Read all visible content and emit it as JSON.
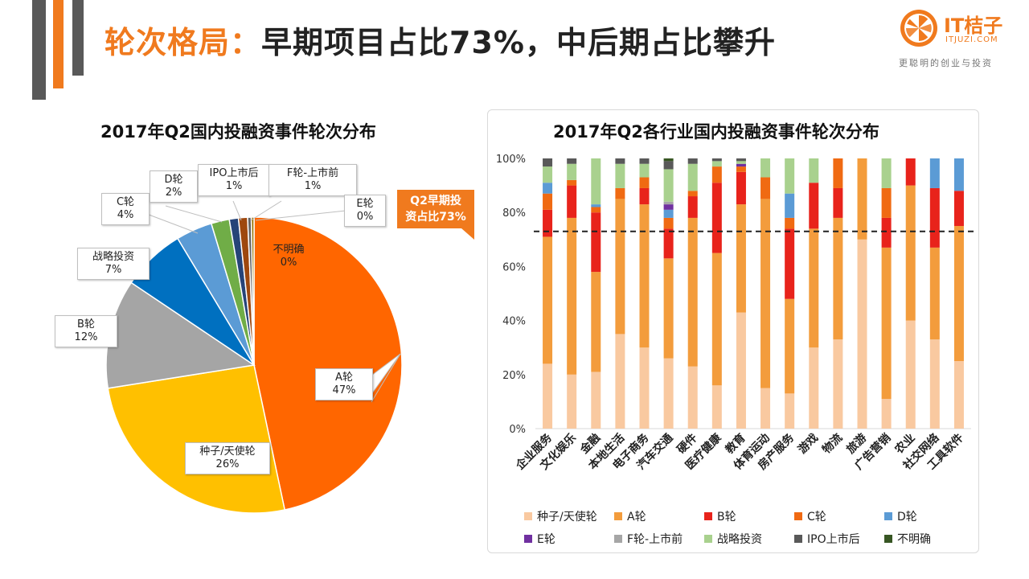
{
  "header": {
    "title_highlight": "轮次格局：",
    "title_rest": "早期项目占比73%，中后期占比攀升",
    "logo_name": "IT桔子",
    "logo_domain": "ITJUZI.COM",
    "logo_slogan": "更聪明的创业与投资"
  },
  "callout": {
    "line1": "Q2早期投",
    "line2": "资占比73%"
  },
  "colors": {
    "seed": "#f9c9a0",
    "a": "#f39c3c",
    "b": "#e8231b",
    "c": "#f06a12",
    "d": "#5b9bd5",
    "e": "#7030a0",
    "f": "#a6a6a6",
    "strategic": "#a9d18e",
    "ipo": "#595959",
    "unknown": "#375623",
    "pie_a": "#ff6600",
    "pie_seed": "#ffc000",
    "pie_b": "#a5a5a5",
    "pie_strategic": "#0070c0",
    "pie_c": "#5b9bd5",
    "pie_d": "#70ad47",
    "pie_ipo": "#264478",
    "pie_f": "#9e480e",
    "pie_e": "#636363",
    "pie_unknown": "#997300"
  },
  "chart_data": [
    {
      "type": "pie",
      "title": "2017年Q2国内投融资事件轮次分布",
      "slices": [
        {
          "name": "A轮",
          "value": 47,
          "label": "A轮",
          "pct": "47%"
        },
        {
          "name": "种子/天使轮",
          "value": 26,
          "label": "种子/天使轮",
          "pct": "26%"
        },
        {
          "name": "B轮",
          "value": 12,
          "label": "B轮",
          "pct": "12%"
        },
        {
          "name": "战略投资",
          "value": 7,
          "label": "战略投资",
          "pct": "7%"
        },
        {
          "name": "C轮",
          "value": 4,
          "label": "C轮",
          "pct": "4%"
        },
        {
          "name": "D轮",
          "value": 2,
          "label": "D轮",
          "pct": "2%"
        },
        {
          "name": "IPO上市后",
          "value": 1,
          "label": "IPO上市后",
          "pct": "1%"
        },
        {
          "name": "F轮-上市前",
          "value": 1,
          "label": "F轮-上市前",
          "pct": "1%"
        },
        {
          "name": "E轮",
          "value": 0.4,
          "label": "E轮",
          "pct": "0%"
        },
        {
          "name": "不明确",
          "value": 0.3,
          "label": "不明确",
          "pct": "0%"
        }
      ]
    },
    {
      "type": "bar",
      "stacked": true,
      "title": "2017年Q2各行业国内投融资事件轮次分布",
      "ylim": [
        0,
        100
      ],
      "yticks": [
        "0%",
        "20%",
        "40%",
        "60%",
        "80%",
        "100%"
      ],
      "reference_line": 73,
      "categories": [
        "企业服务",
        "文化娱乐",
        "金融",
        "本地生活",
        "电子商务",
        "汽车交通",
        "硬件",
        "医疗健康",
        "教育",
        "体育运动",
        "房产服务",
        "游戏",
        "物流",
        "旅游",
        "广告营销",
        "农业",
        "社交网络",
        "工具软件"
      ],
      "series": [
        {
          "name": "种子/天使轮",
          "key": "seed",
          "values": [
            24,
            20,
            21,
            35,
            30,
            26,
            23,
            16,
            43,
            15,
            13,
            30,
            33,
            70,
            11,
            40,
            33,
            25
          ]
        },
        {
          "name": "A轮",
          "key": "a",
          "values": [
            47,
            58,
            37,
            50,
            53,
            37,
            55,
            49,
            40,
            70,
            35,
            44,
            45,
            30,
            56,
            50,
            34,
            50
          ]
        },
        {
          "name": "B轮",
          "key": "b",
          "values": [
            10,
            12,
            22,
            0,
            6,
            11,
            8,
            26,
            12,
            0,
            26,
            17,
            11,
            0,
            11,
            10,
            22,
            13
          ]
        },
        {
          "name": "C轮",
          "key": "c",
          "values": [
            6,
            2,
            2,
            4,
            4,
            4,
            2,
            6,
            2,
            8,
            4,
            0,
            11,
            0,
            11,
            0,
            0,
            0
          ]
        },
        {
          "name": "D轮",
          "key": "d",
          "values": [
            4,
            0,
            1,
            0,
            0,
            3,
            0,
            0,
            0,
            0,
            9,
            0,
            0,
            0,
            0,
            0,
            11,
            12
          ]
        },
        {
          "name": "E轮",
          "key": "e",
          "values": [
            0,
            0,
            0,
            0,
            0,
            2,
            0,
            0,
            1,
            0,
            0,
            0,
            0,
            0,
            0,
            0,
            0,
            0
          ]
        },
        {
          "name": "F轮-上市前",
          "key": "f",
          "values": [
            0,
            0,
            0,
            0,
            0,
            1,
            0,
            0,
            0,
            0,
            0,
            0,
            0,
            0,
            0,
            0,
            0,
            0
          ]
        },
        {
          "name": "战略投资",
          "key": "strategic",
          "values": [
            6,
            6,
            17,
            9,
            5,
            12,
            10,
            2,
            1,
            7,
            13,
            9,
            0,
            0,
            11,
            0,
            0,
            0
          ]
        },
        {
          "name": "IPO上市后",
          "key": "ipo",
          "values": [
            3,
            2,
            0,
            2,
            2,
            3,
            2,
            1,
            1,
            0,
            0,
            0,
            0,
            0,
            0,
            0,
            0,
            0
          ]
        },
        {
          "name": "不明确",
          "key": "unknown",
          "values": [
            0,
            0,
            0,
            0,
            0,
            1,
            0,
            0,
            0,
            0,
            0,
            0,
            0,
            0,
            0,
            0,
            0,
            0
          ]
        }
      ]
    }
  ]
}
